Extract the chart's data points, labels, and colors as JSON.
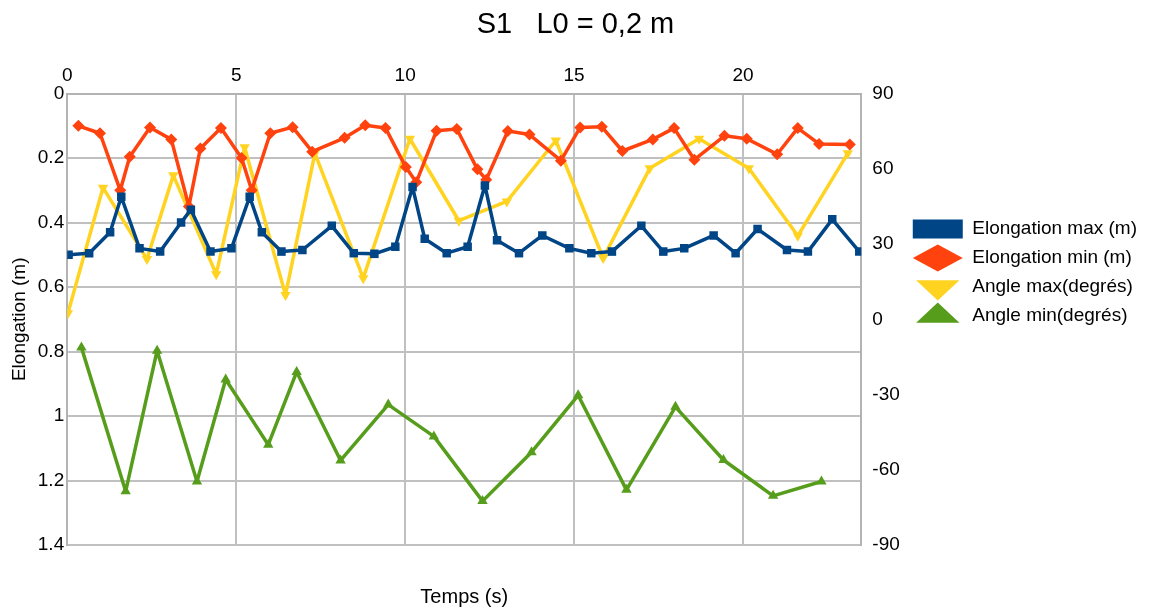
{
  "chart_data": {
    "type": "line",
    "title": "S1   L0 = 0,2 m",
    "xlabel": "Temps (s)",
    "ylabel": "Elongation (m)",
    "xlim": [
      0,
      23.5
    ],
    "xticks": [
      0,
      5,
      10,
      15,
      20
    ],
    "ylim": [
      1.4,
      0
    ],
    "yticks": [
      0,
      0.2,
      0.4,
      0.6,
      0.8,
      1,
      1.2,
      1.4
    ],
    "y2lim": [
      -90,
      90
    ],
    "y2ticks": [
      -90,
      -60,
      -30,
      0,
      30,
      60,
      90
    ],
    "grid": true,
    "legend": "right",
    "line_style": "solid",
    "series": [
      {
        "name": "Elongation max (m)",
        "color": "#004586",
        "marker": "square",
        "x": [
          0.04,
          0.65,
          1.27,
          1.6,
          2.14,
          2.75,
          3.37,
          3.66,
          4.24,
          4.86,
          5.4,
          5.76,
          6.34,
          6.96,
          7.83,
          8.48,
          9.09,
          9.71,
          10.22,
          10.58,
          11.23,
          11.85,
          12.36,
          12.72,
          13.37,
          14.06,
          14.86,
          15.51,
          16.12,
          16.99,
          17.64,
          18.26,
          19.13,
          19.78,
          20.43,
          21.3,
          21.92,
          22.64,
          23.44
        ],
        "values": [
          0.5,
          0.495,
          0.43,
          0.32,
          0.48,
          0.49,
          0.4,
          0.36,
          0.49,
          0.48,
          0.32,
          0.43,
          0.49,
          0.485,
          0.41,
          0.495,
          0.497,
          0.475,
          0.29,
          0.45,
          0.495,
          0.475,
          0.285,
          0.455,
          0.495,
          0.44,
          0.48,
          0.495,
          0.49,
          0.41,
          0.49,
          0.48,
          0.44,
          0.495,
          0.42,
          0.485,
          0.49,
          0.39,
          0.49
        ]
      },
      {
        "name": "Elongation min (m)",
        "color": "#ff420e",
        "marker": "diamond",
        "x": [
          0.33,
          0.97,
          1.57,
          1.85,
          2.45,
          3.08,
          3.6,
          3.94,
          4.55,
          5.16,
          5.46,
          6.01,
          6.67,
          7.25,
          8.21,
          8.82,
          9.42,
          10.02,
          10.33,
          10.93,
          11.53,
          12.14,
          12.4,
          13.04,
          13.68,
          14.61,
          15.18,
          15.82,
          16.43,
          17.33,
          17.96,
          18.56,
          19.45,
          20.11,
          21.01,
          21.62,
          22.25,
          23.16
        ],
        "values": [
          0.1,
          0.123,
          0.3,
          0.196,
          0.105,
          0.142,
          0.35,
          0.17,
          0.107,
          0.2,
          0.3,
          0.123,
          0.104,
          0.18,
          0.137,
          0.098,
          0.107,
          0.228,
          0.275,
          0.115,
          0.11,
          0.235,
          0.267,
          0.116,
          0.127,
          0.208,
          0.105,
          0.103,
          0.178,
          0.142,
          0.107,
          0.205,
          0.131,
          0.14,
          0.188,
          0.107,
          0.156,
          0.158
        ]
      },
      {
        "name": "Angle max(degrés)",
        "color": "#ffd320",
        "marker": "triangle_down",
        "axis": "y2",
        "x": [
          0.02,
          1.06,
          2.36,
          3.14,
          4.41,
          5.25,
          6.46,
          7.33,
          8.76,
          10.14,
          11.59,
          13.01,
          14.46,
          15.86,
          17.24,
          18.7,
          20.17,
          21.62,
          23.1
        ],
        "values": [
          2.4,
          52.5,
          24,
          57.4,
          18,
          68.6,
          9.7,
          66.2,
          16.4,
          72,
          39.3,
          47,
          71.3,
          24.4,
          60.2,
          72,
          60.2,
          33.3,
          66.2
        ]
      },
      {
        "name": "Angle min(degrés)",
        "color": "#579d1c",
        "marker": "triangle",
        "axis": "y2",
        "x": [
          0.42,
          1.73,
          2.66,
          3.84,
          4.69,
          5.95,
          6.79,
          8.09,
          9.5,
          10.85,
          12.29,
          13.74,
          15.12,
          16.55,
          18.0,
          19.42,
          20.89,
          22.32
        ],
        "values": [
          -11.2,
          -68.6,
          -12.5,
          -64.7,
          -24,
          -50,
          -21,
          -56.3,
          -34,
          -46.7,
          -72.5,
          -53,
          -30.3,
          -68,
          -34.9,
          -56.1,
          -70.4,
          -64.7
        ]
      }
    ]
  }
}
